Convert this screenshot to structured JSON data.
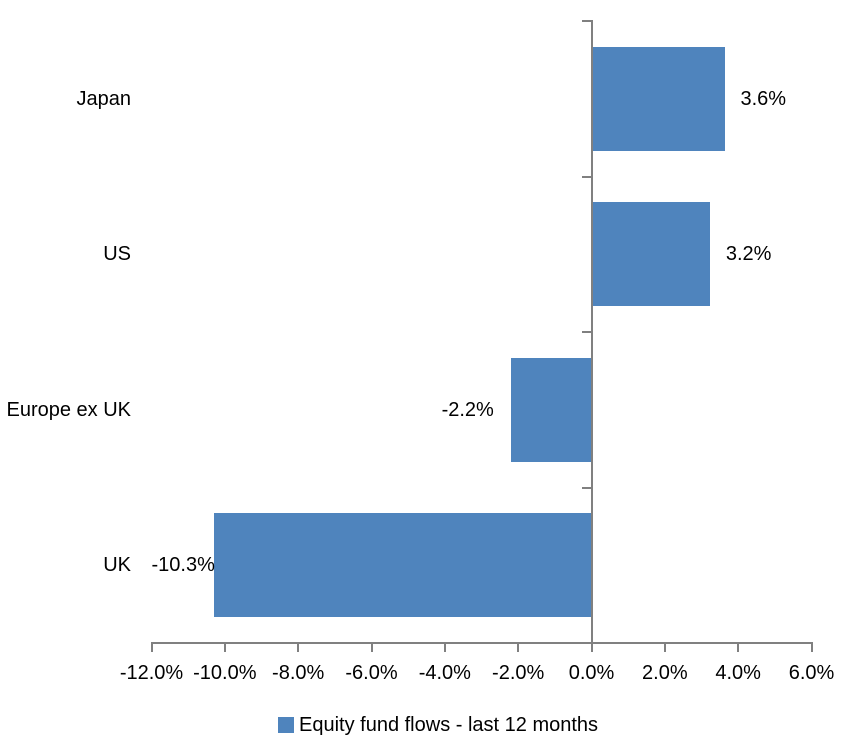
{
  "chart_data": {
    "type": "bar",
    "orientation": "horizontal",
    "title": "",
    "categories": [
      "Japan",
      "US",
      "Europe ex UK",
      "UK"
    ],
    "series": [
      {
        "name": "Equity fund flows - last 12 months",
        "values": [
          3.6,
          3.2,
          -2.2,
          -10.3
        ]
      }
    ],
    "data_labels": [
      "3.6%",
      "3.2%",
      "-2.2%",
      "-10.3%"
    ],
    "x_axis": {
      "min": -12.0,
      "max": 6.0,
      "tick_step": 2.0,
      "tick_values": [
        -12,
        -10,
        -8,
        -6,
        -4,
        -2,
        0,
        2,
        4,
        6
      ],
      "tick_labels": [
        "-12.0%",
        "-10.0%",
        "-8.0%",
        "-6.0%",
        "-4.0%",
        "-2.0%",
        "0.0%",
        "2.0%",
        "4.0%",
        "6.0%"
      ]
    },
    "legend": {
      "position": "bottom",
      "entries": [
        "Equity fund flows - last 12 months"
      ]
    },
    "grid": "off",
    "colors": {
      "bar": "#4F84BD",
      "axis": "#808080",
      "text": "#000000",
      "background": "#FFFFFF"
    }
  }
}
